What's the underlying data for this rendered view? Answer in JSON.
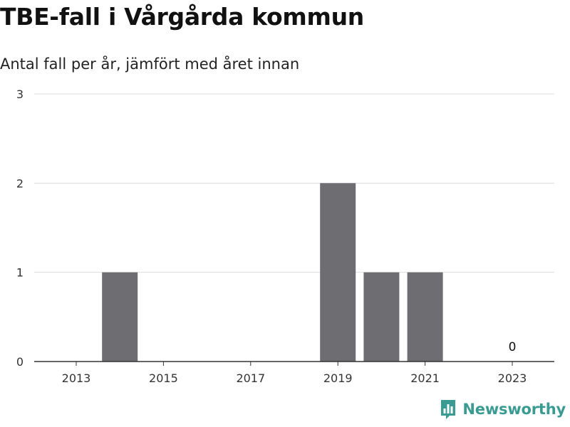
{
  "header": {
    "title": "TBE-fall i Vårgårda kommun",
    "subtitle": "Antal fall per år, jämfört med året innan"
  },
  "brand": {
    "name": "Newsworthy",
    "color": "#3a9b93",
    "icon": "bar-chart-speech-bubble-icon"
  },
  "colors": {
    "bar": "#6e6d72",
    "grid": "#dddddd",
    "axis": "#333333"
  },
  "chart_data": {
    "type": "bar",
    "categories": [
      "2013",
      "2014",
      "2015",
      "2016",
      "2017",
      "2018",
      "2019",
      "2020",
      "2021",
      "2022",
      "2023"
    ],
    "values": [
      0,
      1,
      0,
      0,
      0,
      0,
      2,
      1,
      1,
      0,
      0
    ],
    "x_tick_labels": [
      "2013",
      "2015",
      "2017",
      "2019",
      "2021",
      "2023"
    ],
    "y_ticks": [
      "0",
      "1",
      "2",
      "3"
    ],
    "ylim": [
      0,
      3
    ],
    "annotations": [
      {
        "category": "2023",
        "text": "0"
      }
    ],
    "grid": true,
    "legend": "none"
  }
}
